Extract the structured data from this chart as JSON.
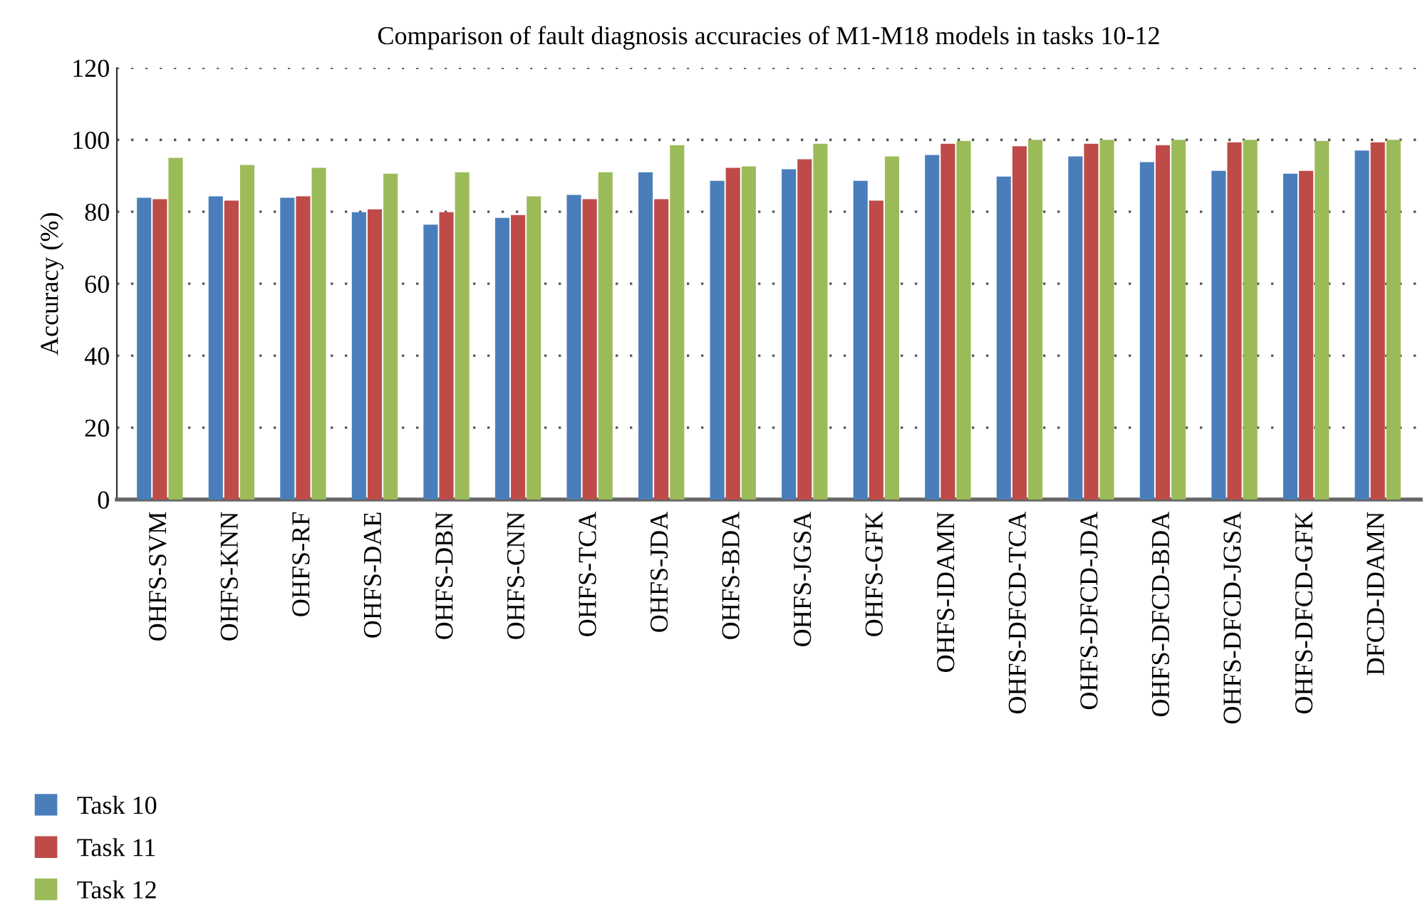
{
  "chart_data": {
    "type": "bar",
    "title": "Comparison of fault diagnosis accuracies of M1-M18 models in tasks 10-12",
    "ylabel": "Accuracy (%)",
    "categories": [
      "OHFS-SVM",
      "OHFS-KNN",
      "OHFS-RF",
      "OHFS-DAE",
      "OHFS-DBN",
      "OHFS-CNN",
      "OHFS-TCA",
      "OHFS-JDA",
      "OHFS-BDA",
      "OHFS-JGSA",
      "OHFS-GFK",
      "OHFS-IDAMN",
      "OHFS-DFCD-TCA",
      "OHFS-DFCD-JDA",
      "OHFS-DFCD-BDA",
      "OHFS-DFCD-JGSA",
      "OHFS-DFCD-GFK",
      "DFCD-IDAMN"
    ],
    "series": [
      {
        "name": "Task 10",
        "color": "#4a7ebb",
        "values": [
          83.9,
          84.3,
          83.9,
          79.9,
          76.4,
          78.3,
          84.7,
          91.0,
          88.6,
          91.8,
          88.6,
          95.8,
          89.8,
          95.4,
          93.8,
          91.4,
          90.6,
          97.0
        ]
      },
      {
        "name": "Task 11",
        "color": "#be4b48",
        "values": [
          83.5,
          83.1,
          84.3,
          80.7,
          79.9,
          79.1,
          83.5,
          83.5,
          92.2,
          94.6,
          83.1,
          98.9,
          98.2,
          98.9,
          98.5,
          99.3,
          91.4,
          99.3
        ]
      },
      {
        "name": "Task 12",
        "color": "#9bbb59",
        "values": [
          95.0,
          93.0,
          92.2,
          90.6,
          91.0,
          84.3,
          91.0,
          98.5,
          92.6,
          98.9,
          95.4,
          99.7,
          100,
          100,
          100,
          100,
          99.7,
          100
        ]
      }
    ],
    "ylim": [
      0,
      120
    ],
    "yticks": [
      0,
      20,
      40,
      60,
      80,
      100,
      120
    ],
    "grid": "y",
    "legend": "bottom left"
  }
}
